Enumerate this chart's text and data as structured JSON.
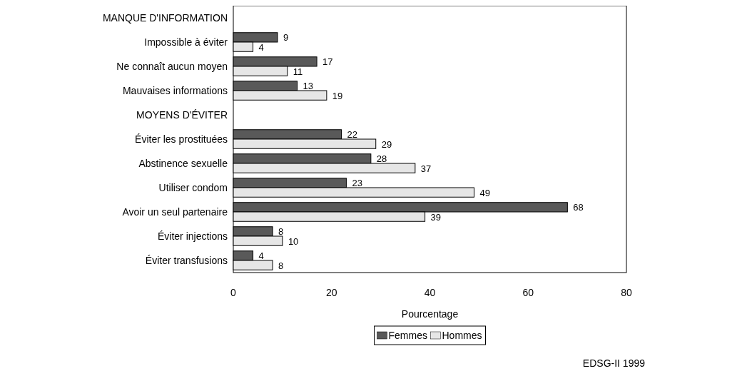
{
  "chart_data": {
    "type": "bar",
    "orientation": "horizontal",
    "categories": [
      "MANQUE D'INFORMATION",
      "Impossible à éviter",
      "Ne connaît aucun moyen",
      "Mauvaises informations",
      "MOYENS D'ÉVITER",
      "Éviter les prostituées",
      "Abstinence sexuelle",
      "Utiliser condom",
      "Avoir un seul partenaire",
      "Éviter injections",
      "Éviter transfusions"
    ],
    "series": [
      {
        "name": "Femmes",
        "color": "#595959",
        "values": [
          null,
          9,
          17,
          13,
          null,
          22,
          28,
          23,
          68,
          8,
          4
        ]
      },
      {
        "name": "Hommes",
        "color": "#e6e6e6",
        "values": [
          null,
          4,
          11,
          19,
          null,
          29,
          37,
          49,
          39,
          10,
          8
        ]
      }
    ],
    "xlabel": "Pourcentage",
    "xlim": [
      0,
      80
    ],
    "xticks": [
      0,
      20,
      40,
      60,
      80
    ],
    "data_labels": true,
    "grid": false,
    "legend": "bottom",
    "annotations": [
      "EDSG-II 1999"
    ]
  }
}
